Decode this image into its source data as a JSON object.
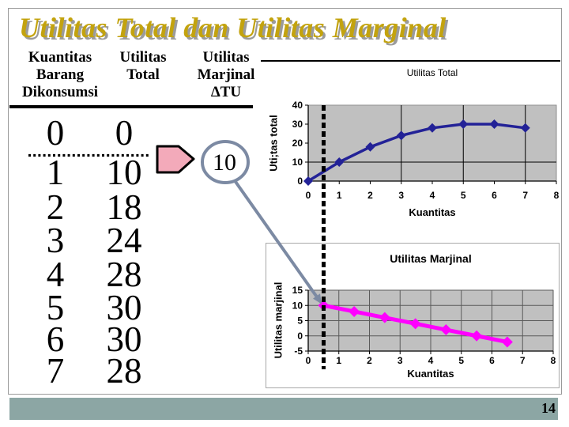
{
  "slide": {
    "title": "Utilitas Total dan Utilitas Marginal",
    "page_number": "14"
  },
  "colors": {
    "title_gold": "#C3A30E",
    "title_shadow": "#9B9B9B",
    "footer_bar": "#8CA6A4",
    "series_total": "#232297",
    "series_marginal": "#FF00FF",
    "plot_bg": "#C0C0C0",
    "callout": "#7C8AA3",
    "arrow_fill": "#F3AABA"
  },
  "table": {
    "header_columns": [
      {
        "lines": [
          "Kuantitas",
          "Barang",
          "Dikonsumsi"
        ]
      },
      {
        "lines": [
          "Utilitas",
          "Total",
          ""
        ]
      },
      {
        "lines": [
          "Utilitas",
          "Marjinal",
          "ΔTU"
        ]
      }
    ],
    "rows": [
      [
        "0",
        "0"
      ],
      [
        "1",
        "10"
      ],
      [
        "2",
        "18"
      ],
      [
        "3",
        "24"
      ],
      [
        "4",
        "28"
      ],
      [
        "5",
        "30"
      ],
      [
        "6",
        "30"
      ],
      [
        "7",
        "28"
      ]
    ]
  },
  "callout": {
    "value": "10"
  },
  "chart_data": [
    {
      "type": "line",
      "title": "Utilitas Total",
      "xlabel": "Kuantitas",
      "ylabel": "Uti;tas total",
      "x": [
        0,
        1,
        2,
        3,
        4,
        5,
        6,
        7
      ],
      "y": [
        0,
        10,
        18,
        24,
        28,
        30,
        30,
        28
      ],
      "xlim": [
        0,
        8
      ],
      "ylim": [
        0,
        40
      ],
      "x_ticks": [
        0,
        1,
        2,
        3,
        4,
        5,
        6,
        7,
        8
      ],
      "y_ticks": [
        0,
        10,
        20,
        30,
        40
      ],
      "v_gridlines": [
        3,
        5,
        7
      ],
      "h_gridlines": [
        10
      ],
      "color": "#232297",
      "marker": "diamond",
      "plot_bg": "#C0C0C0",
      "legend": "none"
    },
    {
      "type": "line",
      "title": "Utilitas Marjinal",
      "xlabel": "Kuantitas",
      "ylabel": "Utilitas marjinal",
      "x": [
        0.5,
        1.5,
        2.5,
        3.5,
        4.5,
        5.5,
        6.5
      ],
      "y": [
        10,
        8,
        6,
        4,
        2,
        0,
        -2
      ],
      "xlim": [
        0,
        8
      ],
      "ylim": [
        -5,
        15
      ],
      "x_ticks": [
        0,
        1,
        2,
        3,
        4,
        5,
        6,
        7,
        8
      ],
      "y_ticks": [
        -5,
        0,
        5,
        10,
        15
      ],
      "v_gridlines": [
        1,
        2,
        3,
        4,
        5,
        6,
        7,
        8
      ],
      "h_gridlines": [
        0,
        5,
        10,
        15
      ],
      "color": "#FF00FF",
      "marker": "diamond",
      "plot_bg": "#C0C0C0",
      "legend": "none"
    }
  ]
}
